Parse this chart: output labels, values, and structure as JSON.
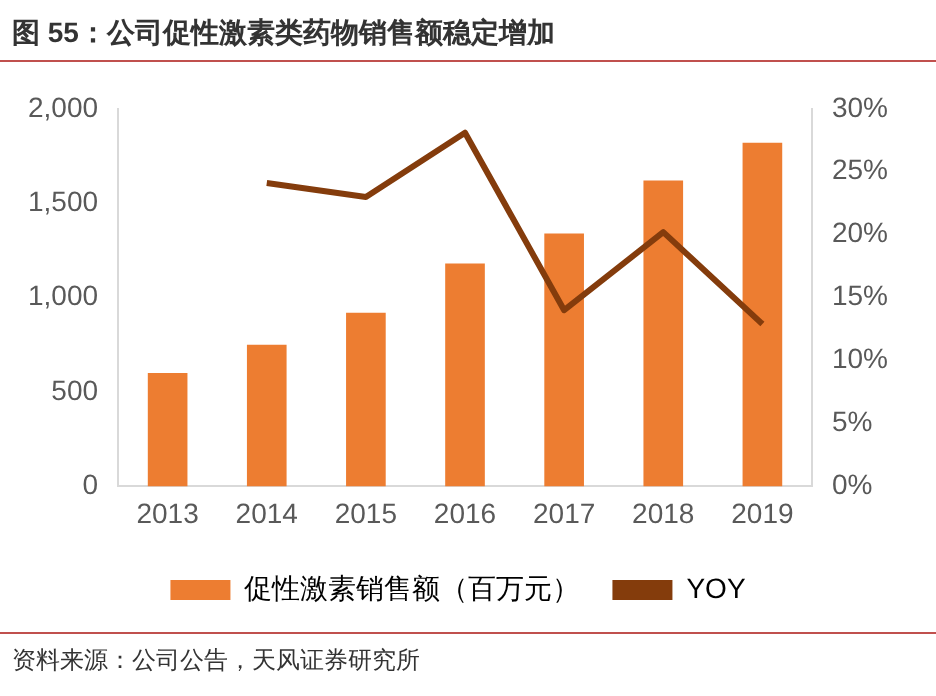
{
  "chart_data": {
    "type": "bar",
    "title": "图 55：公司促性激素类药物销售额稳定增加",
    "categories": [
      "2013",
      "2014",
      "2015",
      "2016",
      "2017",
      "2018",
      "2019"
    ],
    "series": [
      {
        "name": "促性激素销售额（百万元）",
        "color": "#ed7d31",
        "values": [
          600,
          750,
          920,
          1180,
          1340,
          1620,
          1820
        ]
      },
      {
        "name": "YOY",
        "type": "line",
        "axis": "y2",
        "color": "#843c0c",
        "values": [
          null,
          24.1,
          23.0,
          28.1,
          14.0,
          20.2,
          12.9
        ]
      }
    ],
    "ylim": [
      0,
      2000
    ],
    "yticks": [
      {
        "value": 0,
        "label": "0"
      },
      {
        "value": 500,
        "label": "500"
      },
      {
        "value": 1000,
        "label": "1,000"
      },
      {
        "value": 1500,
        "label": "1,500"
      },
      {
        "value": 2000,
        "label": "2,000"
      }
    ],
    "y2lim": [
      0,
      30
    ],
    "y2ticks": [
      {
        "value": 0,
        "label": "0%"
      },
      {
        "value": 5,
        "label": "5%"
      },
      {
        "value": 10,
        "label": "10%"
      },
      {
        "value": 15,
        "label": "15%"
      },
      {
        "value": 20,
        "label": "20%"
      },
      {
        "value": 25,
        "label": "25%"
      },
      {
        "value": 30,
        "label": "30%"
      }
    ],
    "grid": false,
    "legend": "bottom",
    "marker": "none",
    "line_style": "solid",
    "annotations": [
      "资料来源：公司公告，天风证券研究所"
    ]
  }
}
